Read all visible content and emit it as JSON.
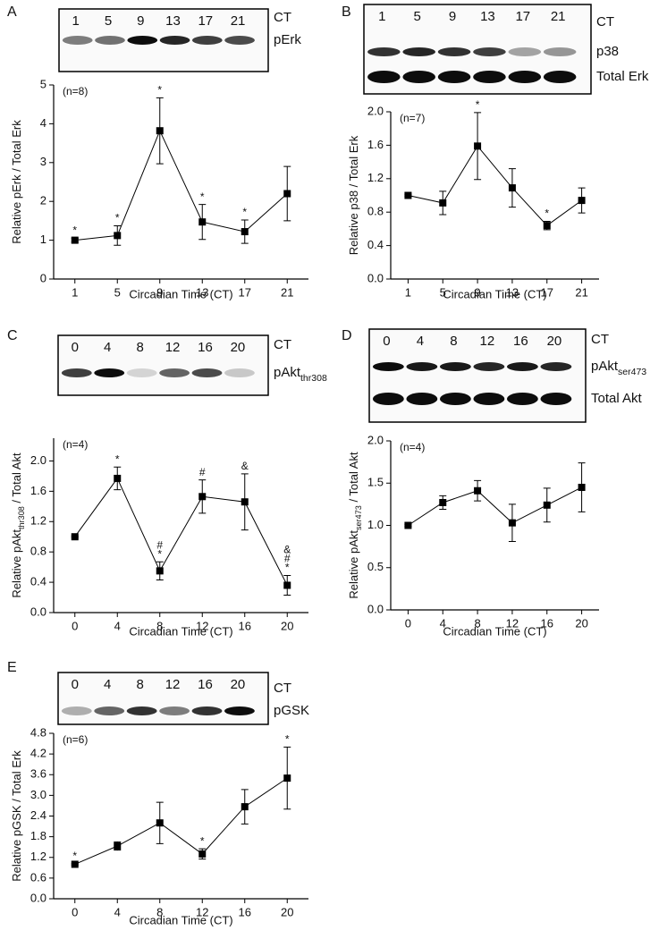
{
  "chart_data": [
    {
      "type": "line",
      "panel": "A",
      "blot": {
        "lanes": [
          "1",
          "5",
          "9",
          "13",
          "17",
          "21"
        ],
        "ct_label": "CT",
        "labels": [
          [
            "pErk"
          ]
        ]
      },
      "n_label": "(n=8)",
      "ylabel": [
        "Relative pErk / Total Erk"
      ],
      "xlabel": "Circadian Time (CT)",
      "x": [
        1,
        5,
        9,
        13,
        17,
        21
      ],
      "values": [
        1.0,
        1.12,
        3.82,
        1.47,
        1.22,
        2.2
      ],
      "errors": [
        0.05,
        0.25,
        0.85,
        0.45,
        0.3,
        0.7
      ],
      "annotations": [
        [
          "*"
        ],
        [
          "*"
        ],
        [
          "*"
        ],
        [
          "*"
        ],
        [
          "*"
        ],
        []
      ],
      "xlim": [
        -1,
        23
      ],
      "xticks": [
        1,
        5,
        9,
        13,
        17,
        21
      ],
      "ylim": [
        0,
        5
      ],
      "yticks": [
        0,
        1,
        2,
        3,
        4,
        5
      ],
      "color": "#000000"
    },
    {
      "type": "line",
      "panel": "B",
      "blot": {
        "lanes": [
          "1",
          "5",
          "9",
          "13",
          "17",
          "21"
        ],
        "ct_label": "CT",
        "labels": [
          [
            "p38"
          ],
          [
            "Total Erk"
          ]
        ]
      },
      "n_label": "(n=7)",
      "ylabel": [
        "Relative p38 / Total Erk"
      ],
      "xlabel": "Circadian Time (CT)",
      "x": [
        1,
        5,
        9,
        13,
        17,
        21
      ],
      "values": [
        1.0,
        0.91,
        1.59,
        1.09,
        0.64,
        0.94
      ],
      "errors": [
        0.01,
        0.14,
        0.4,
        0.23,
        0.05,
        0.15
      ],
      "annotations": [
        [],
        [],
        [
          "*"
        ],
        [],
        [
          "*"
        ],
        []
      ],
      "xlim": [
        -1,
        23
      ],
      "xticks": [
        1,
        5,
        9,
        13,
        17,
        21
      ],
      "ylim": [
        0,
        2.0
      ],
      "yticks": [
        {
          "value": 0,
          "label": "0.0"
        },
        {
          "value": 0.4,
          "label": "0.4"
        },
        {
          "value": 0.8,
          "label": "0.8"
        },
        {
          "value": 1.2,
          "label": "1.2"
        },
        {
          "value": 1.6,
          "label": "1.6"
        },
        {
          "value": 2.0,
          "label": "2.0"
        }
      ],
      "color": "#000000"
    },
    {
      "type": "line",
      "panel": "C",
      "blot": {
        "lanes": [
          "0",
          "4",
          "8",
          "12",
          "16",
          "20"
        ],
        "ct_label": "CT",
        "labels": [
          [
            "pAkt",
            "thr308"
          ]
        ]
      },
      "n_label": "(n=4)",
      "ylabel": [
        "Relative pAkt",
        "thr308",
        " / Total Akt"
      ],
      "xlabel": "Circadian Time (CT)",
      "x": [
        0,
        4,
        8,
        12,
        16,
        20
      ],
      "values": [
        1.0,
        1.77,
        0.55,
        1.53,
        1.46,
        0.36
      ],
      "errors": [
        0.01,
        0.15,
        0.12,
        0.22,
        0.37,
        0.13
      ],
      "annotations": [
        [],
        [
          "*"
        ],
        [
          "*",
          "#"
        ],
        [
          "#"
        ],
        [
          "&"
        ],
        [
          "*",
          "#",
          "&"
        ]
      ],
      "xlim": [
        -2,
        22
      ],
      "xticks": [
        0,
        4,
        8,
        12,
        16,
        20
      ],
      "ylim": [
        0,
        2.3
      ],
      "yticks": [
        {
          "value": 0,
          "label": "0.0"
        },
        {
          "value": 0.4,
          "label": "0.4"
        },
        {
          "value": 0.8,
          "label": "0.8"
        },
        {
          "value": 1.2,
          "label": "1.2"
        },
        {
          "value": 1.6,
          "label": "1.6"
        },
        {
          "value": 2.0,
          "label": "2.0"
        }
      ],
      "color": "#000000"
    },
    {
      "type": "line",
      "panel": "D",
      "blot": {
        "lanes": [
          "0",
          "4",
          "8",
          "12",
          "16",
          "20"
        ],
        "ct_label": "CT",
        "labels": [
          [
            "pAkt",
            "ser473"
          ],
          [
            "Total Akt"
          ]
        ]
      },
      "n_label": "(n=4)",
      "ylabel": [
        "Relative pAkt",
        "ser473",
        " / Total Akt"
      ],
      "xlabel": "Circadian Time (CT)",
      "x": [
        0,
        4,
        8,
        12,
        16,
        20
      ],
      "values": [
        1.0,
        1.27,
        1.41,
        1.03,
        1.24,
        1.45
      ],
      "errors": [
        0.01,
        0.08,
        0.12,
        0.22,
        0.2,
        0.29
      ],
      "annotations": [
        [],
        [],
        [],
        [],
        [],
        []
      ],
      "xlim": [
        -2,
        22
      ],
      "xticks": [
        0,
        4,
        8,
        12,
        16,
        20
      ],
      "ylim": [
        0,
        2.0
      ],
      "yticks": [
        {
          "value": 0,
          "label": "0.0"
        },
        0.5,
        {
          "value": 1.0,
          "label": "1.0"
        },
        1.5,
        {
          "value": 2.0,
          "label": "2.0"
        }
      ],
      "color": "#000000"
    },
    {
      "type": "line",
      "panel": "E",
      "blot": {
        "lanes": [
          "0",
          "4",
          "8",
          "12",
          "16",
          "20"
        ],
        "ct_label": "CT",
        "labels": [
          [
            "pGSK"
          ]
        ]
      },
      "n_label": "(n=6)",
      "ylabel": [
        "Relative pGSK / Total Erk"
      ],
      "xlabel": "Circadian Time (CT)",
      "x": [
        0,
        4,
        8,
        12,
        16,
        20
      ],
      "values": [
        1.0,
        1.53,
        2.2,
        1.3,
        2.67,
        3.5
      ],
      "errors": [
        0.02,
        0.12,
        0.6,
        0.15,
        0.5,
        0.9
      ],
      "annotations": [
        [
          "*"
        ],
        [],
        [],
        [
          "*"
        ],
        [],
        [
          "*"
        ]
      ],
      "xlim": [
        -2,
        22
      ],
      "xticks": [
        0,
        4,
        8,
        12,
        16,
        20
      ],
      "ylim": [
        0,
        4.8
      ],
      "yticks": [
        {
          "value": 0,
          "label": "0.0"
        },
        0.6,
        {
          "value": 1.2,
          "label": "1.2"
        },
        1.8,
        2.4,
        {
          "value": 3.0,
          "label": "3.0"
        },
        3.6,
        4.2,
        4.8
      ],
      "color": "#000000"
    }
  ]
}
